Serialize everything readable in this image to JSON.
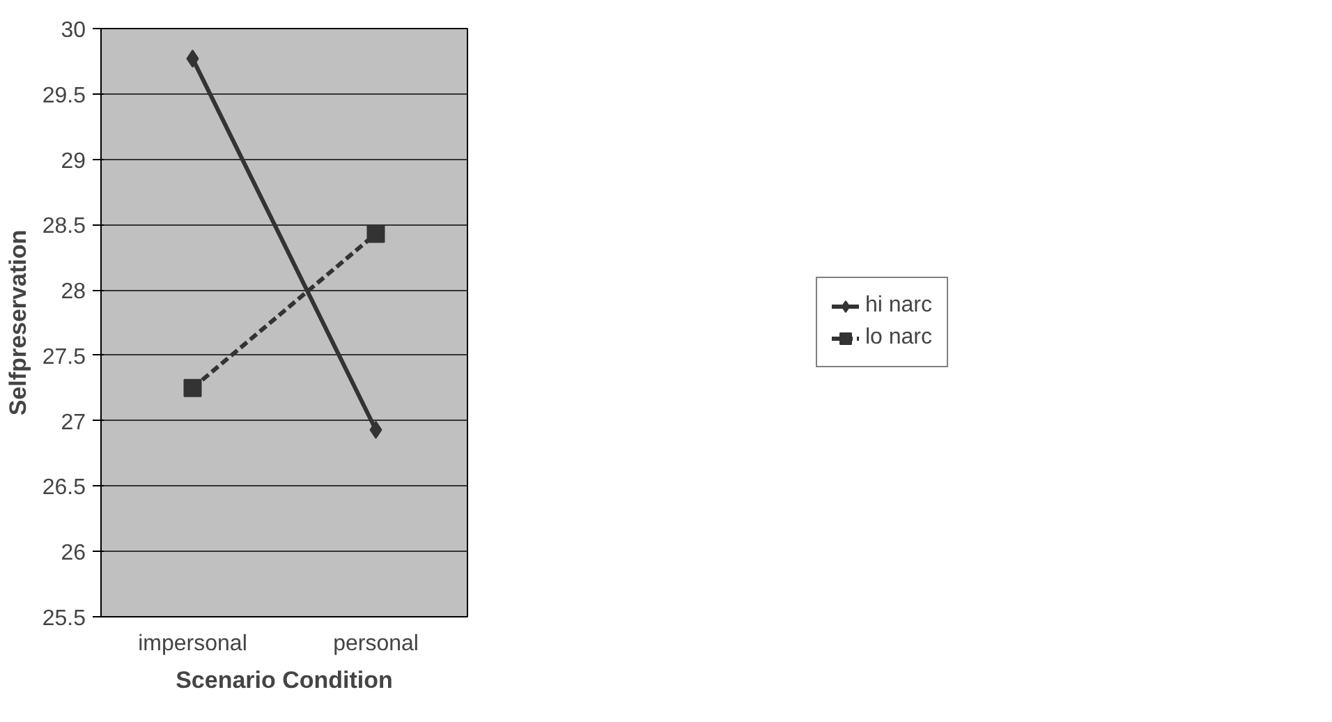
{
  "chart_data": {
    "type": "line",
    "xlabel": "Scenario Condition",
    "ylabel": "Selfpreservation",
    "categories": [
      "impersonal",
      "personal"
    ],
    "series": [
      {
        "name": "hi narc",
        "color": "#333333",
        "values": [
          29.77,
          26.93
        ],
        "marker": "diamond",
        "line_style": "solid"
      },
      {
        "name": "lo narc",
        "color": "#333333",
        "values": [
          27.25,
          28.43
        ],
        "marker": "square",
        "line_style": "dashed"
      }
    ],
    "ylim": [
      25.5,
      30
    ],
    "yticks": [
      25.5,
      26,
      26.5,
      27,
      27.5,
      28,
      28.5,
      29,
      29.5,
      30
    ],
    "grid": "y",
    "legend": "right"
  }
}
